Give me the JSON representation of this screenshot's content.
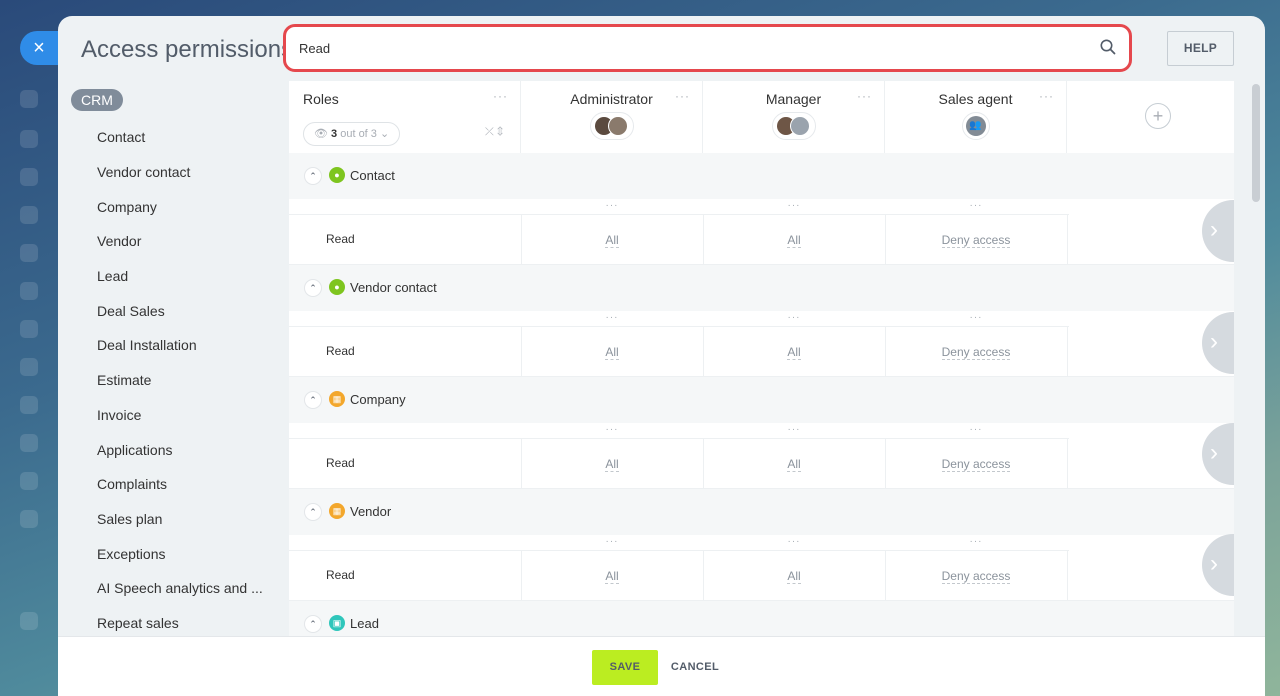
{
  "window": {
    "title": "Access permissions",
    "close_label": "×"
  },
  "search": {
    "value": "Read",
    "placeholder": ""
  },
  "help_label": "HELP",
  "sidebar": {
    "section": "CRM",
    "items": [
      "Contact",
      "Vendor contact",
      "Company",
      "Vendor",
      "Lead",
      "Deal Sales",
      "Deal Installation",
      "Estimate",
      "Invoice",
      "Applications",
      "Complaints",
      "Sales plan",
      "Exceptions",
      "AI Speech analytics and ...",
      "Repeat sales"
    ]
  },
  "table": {
    "roles_header": "Roles",
    "menu_glyph": "···",
    "counter": {
      "value": "3",
      "suffix": "out of 3"
    },
    "roles": [
      {
        "name": "Administrator",
        "avatar": "user-photos-icon"
      },
      {
        "name": "Manager",
        "avatar": "user-photos-icon"
      },
      {
        "name": "Sales agent",
        "avatar": "group-icon"
      }
    ],
    "add_role_glyph": "+",
    "sections": [
      {
        "label": "Contact",
        "icon": "contact-icon",
        "permission": "Read",
        "values": [
          "All",
          "All",
          "Deny access"
        ]
      },
      {
        "label": "Vendor contact",
        "icon": "contact-icon",
        "permission": "Read",
        "values": [
          "All",
          "All",
          "Deny access"
        ]
      },
      {
        "label": "Company",
        "icon": "company-icon",
        "permission": "Read",
        "values": [
          "All",
          "All",
          "Deny access"
        ]
      },
      {
        "label": "Vendor",
        "icon": "company-icon",
        "permission": "Read",
        "values": [
          "All",
          "All",
          "Deny access"
        ]
      },
      {
        "label": "Lead",
        "icon": "lead-icon"
      }
    ]
  },
  "footer": {
    "save_label": "SAVE",
    "cancel_label": "CANCEL"
  },
  "colors": {
    "accent_blue": "#2f8ce8",
    "highlight_red": "#e5484d",
    "save_green": "#bbed21",
    "contact_green": "#7ec51f",
    "company_orange": "#f3a72c",
    "lead_teal": "#2fc6bb"
  }
}
